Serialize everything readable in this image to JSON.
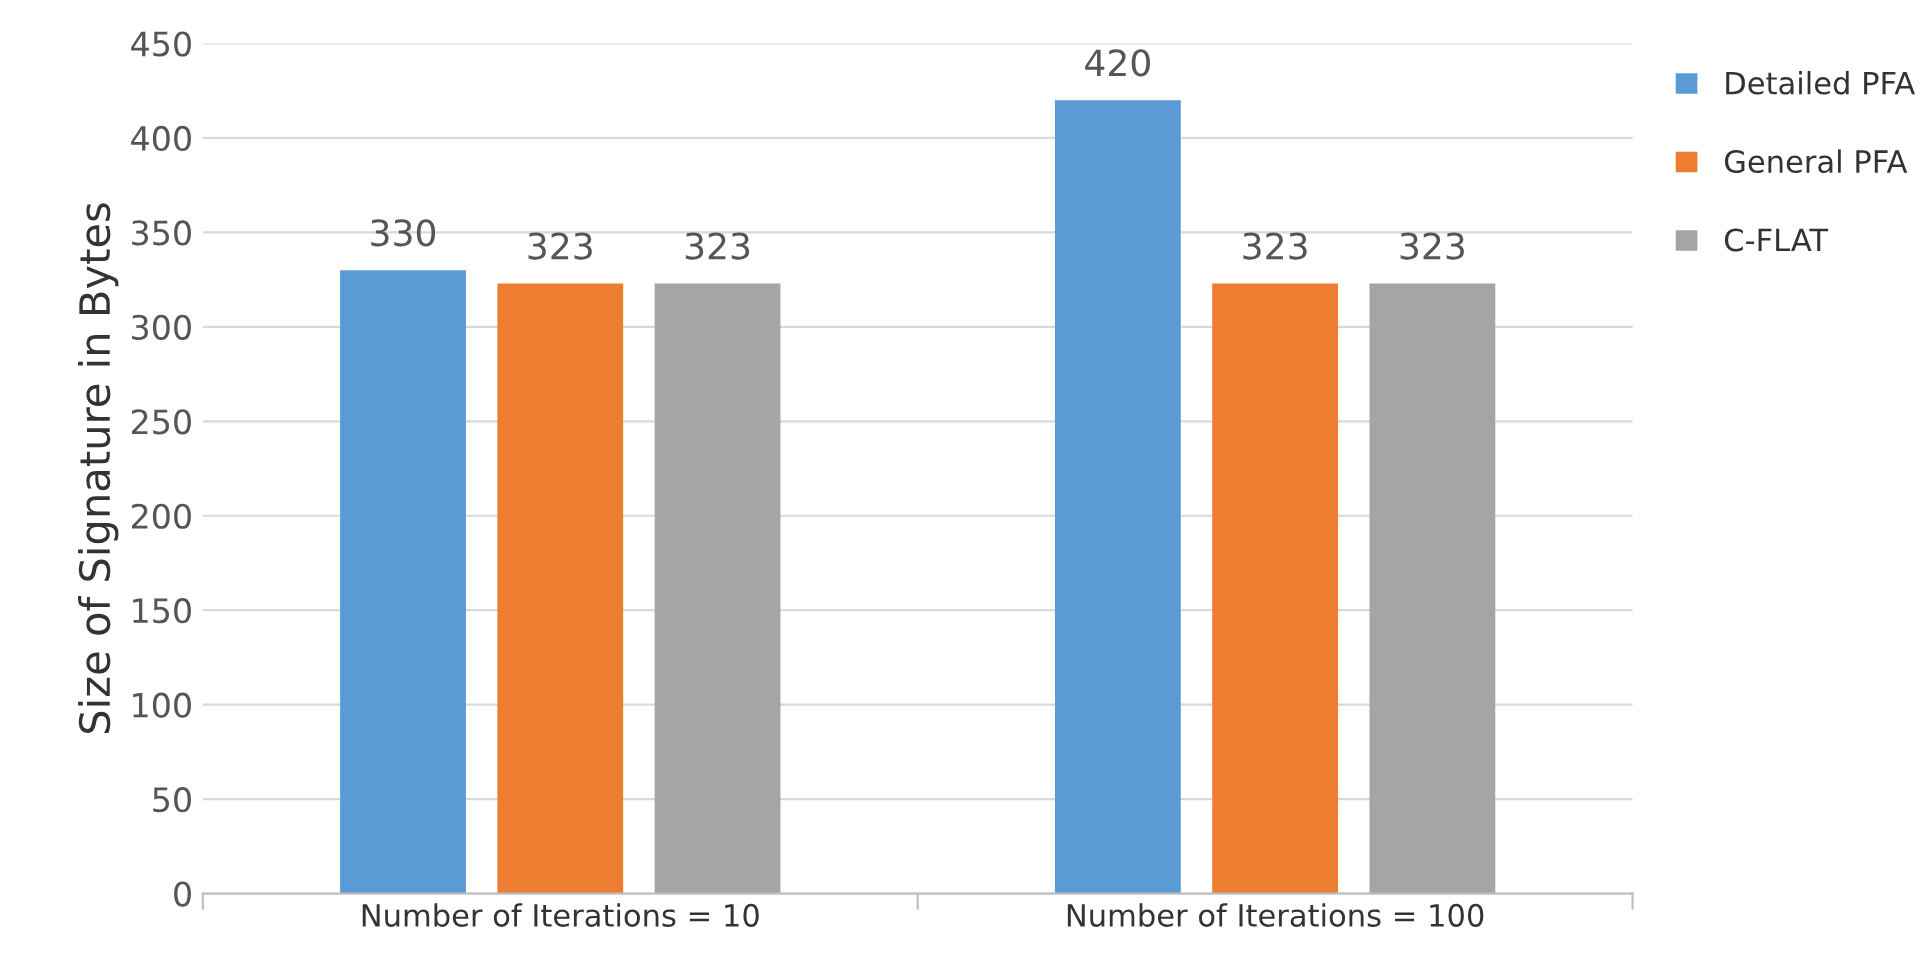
{
  "chart_data": {
    "type": "bar",
    "ylabel": "Size of Signature in Bytes",
    "categories": [
      "Number of Iterations = 10",
      "Number of Iterations = 100"
    ],
    "series": [
      {
        "name": "Detailed PFA",
        "color": "#5b9bd5",
        "values": [
          330,
          420
        ]
      },
      {
        "name": "General PFA",
        "color": "#ed7d31",
        "values": [
          323,
          323
        ]
      },
      {
        "name": "C-FLAT",
        "color": "#a5a5a5",
        "values": [
          323,
          323
        ]
      }
    ],
    "ylim": [
      0,
      450
    ],
    "yticks": [
      0,
      50,
      100,
      150,
      200,
      250,
      300,
      350,
      400,
      450
    ],
    "grid": "y",
    "legend": "top right",
    "data_labels": true
  }
}
